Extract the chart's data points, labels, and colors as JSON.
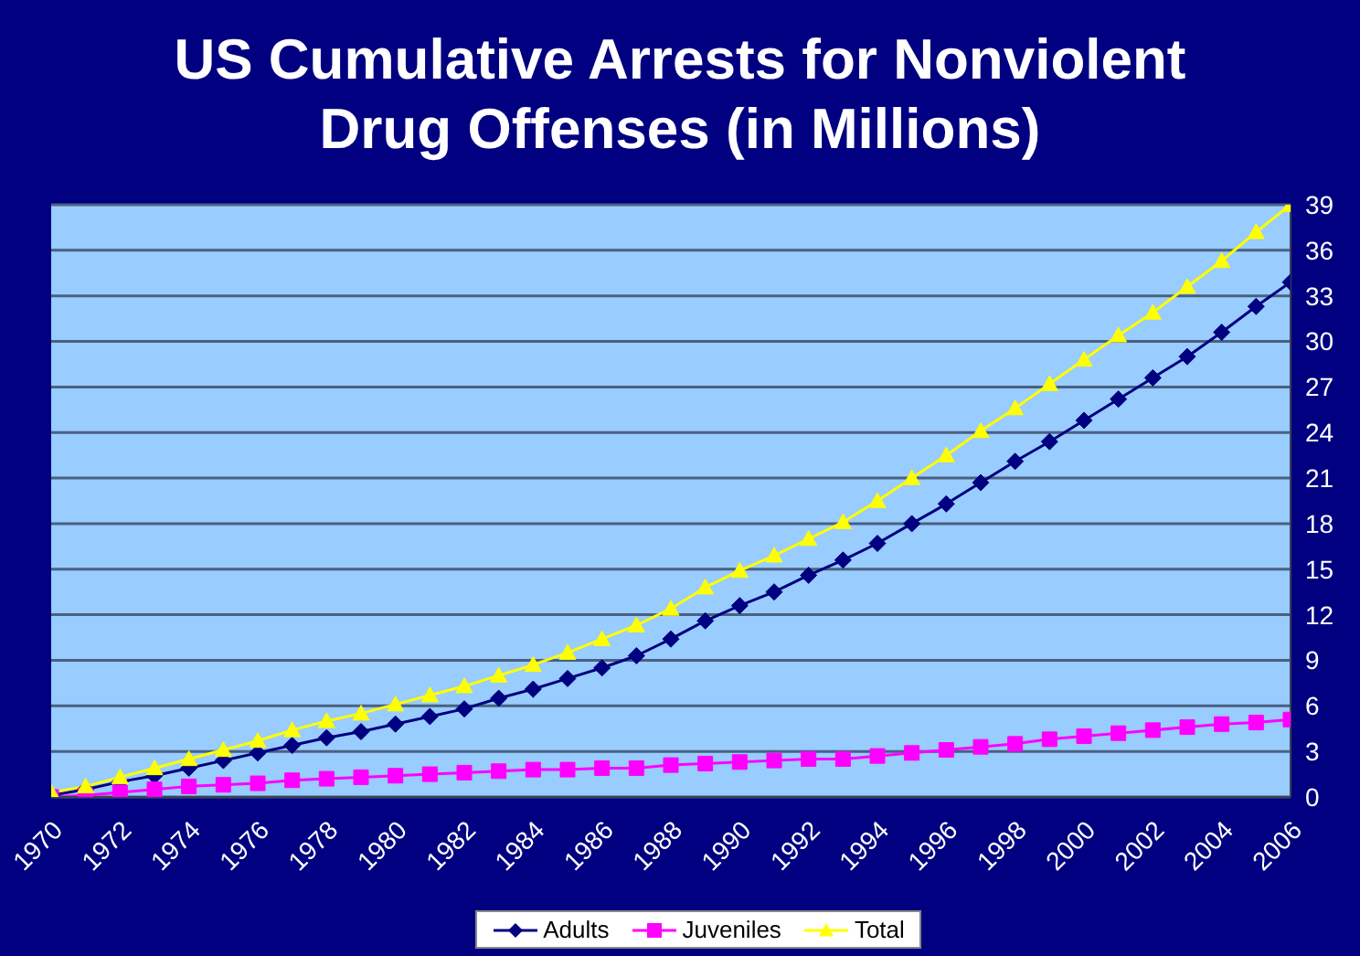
{
  "chart_data": {
    "type": "line",
    "title": "US Cumulative Arrests for Nonviolent Drug Offenses (in Millions)",
    "x": [
      1970,
      1971,
      1972,
      1973,
      1974,
      1975,
      1976,
      1977,
      1978,
      1979,
      1980,
      1981,
      1982,
      1983,
      1984,
      1985,
      1986,
      1987,
      1988,
      1989,
      1990,
      1991,
      1992,
      1993,
      1994,
      1995,
      1996,
      1997,
      1998,
      1999,
      2000,
      2001,
      2002,
      2003,
      2004,
      2005,
      2006
    ],
    "series": [
      {
        "name": "Adults",
        "color": "#000080",
        "marker": "diamond",
        "values": [
          0.1,
          0.5,
          1.0,
          1.4,
          1.9,
          2.4,
          2.9,
          3.4,
          3.9,
          4.3,
          4.8,
          5.3,
          5.8,
          6.5,
          7.1,
          7.8,
          8.5,
          9.3,
          10.4,
          11.6,
          12.6,
          13.5,
          14.6,
          15.6,
          16.7,
          18.0,
          19.3,
          20.7,
          22.1,
          23.4,
          24.8,
          26.2,
          27.6,
          29.0,
          30.6,
          32.3,
          33.9
        ]
      },
      {
        "name": "Juveniles",
        "color": "#ff00ff",
        "marker": "square",
        "values": [
          0.0,
          0.1,
          0.3,
          0.5,
          0.7,
          0.8,
          0.9,
          1.1,
          1.2,
          1.3,
          1.4,
          1.5,
          1.6,
          1.7,
          1.8,
          1.8,
          1.9,
          1.9,
          2.1,
          2.2,
          2.3,
          2.4,
          2.5,
          2.5,
          2.7,
          2.9,
          3.1,
          3.3,
          3.5,
          3.8,
          4.0,
          4.2,
          4.4,
          4.6,
          4.8,
          4.9,
          5.1
        ]
      },
      {
        "name": "Total",
        "color": "#ffff00",
        "marker": "triangle",
        "values": [
          0.3,
          0.7,
          1.3,
          1.9,
          2.5,
          3.1,
          3.7,
          4.4,
          5.0,
          5.5,
          6.1,
          6.7,
          7.3,
          8.0,
          8.7,
          9.5,
          10.4,
          11.3,
          12.4,
          13.8,
          14.9,
          15.9,
          17.0,
          18.1,
          19.5,
          21.0,
          22.5,
          24.1,
          25.6,
          27.2,
          28.8,
          30.4,
          31.9,
          33.6,
          35.3,
          37.2,
          39.0
        ]
      }
    ],
    "xlim": [
      1970,
      2006
    ],
    "xticks": [
      1970,
      1972,
      1974,
      1976,
      1978,
      1980,
      1982,
      1984,
      1986,
      1988,
      1990,
      1992,
      1994,
      1996,
      1998,
      2000,
      2002,
      2004,
      2006
    ],
    "ylim": [
      0,
      39
    ],
    "yticks": [
      0,
      3,
      6,
      9,
      12,
      15,
      18,
      21,
      24,
      27,
      30,
      33,
      36,
      39
    ],
    "grid": "y",
    "legend": "bottom",
    "line_style": "solid"
  }
}
